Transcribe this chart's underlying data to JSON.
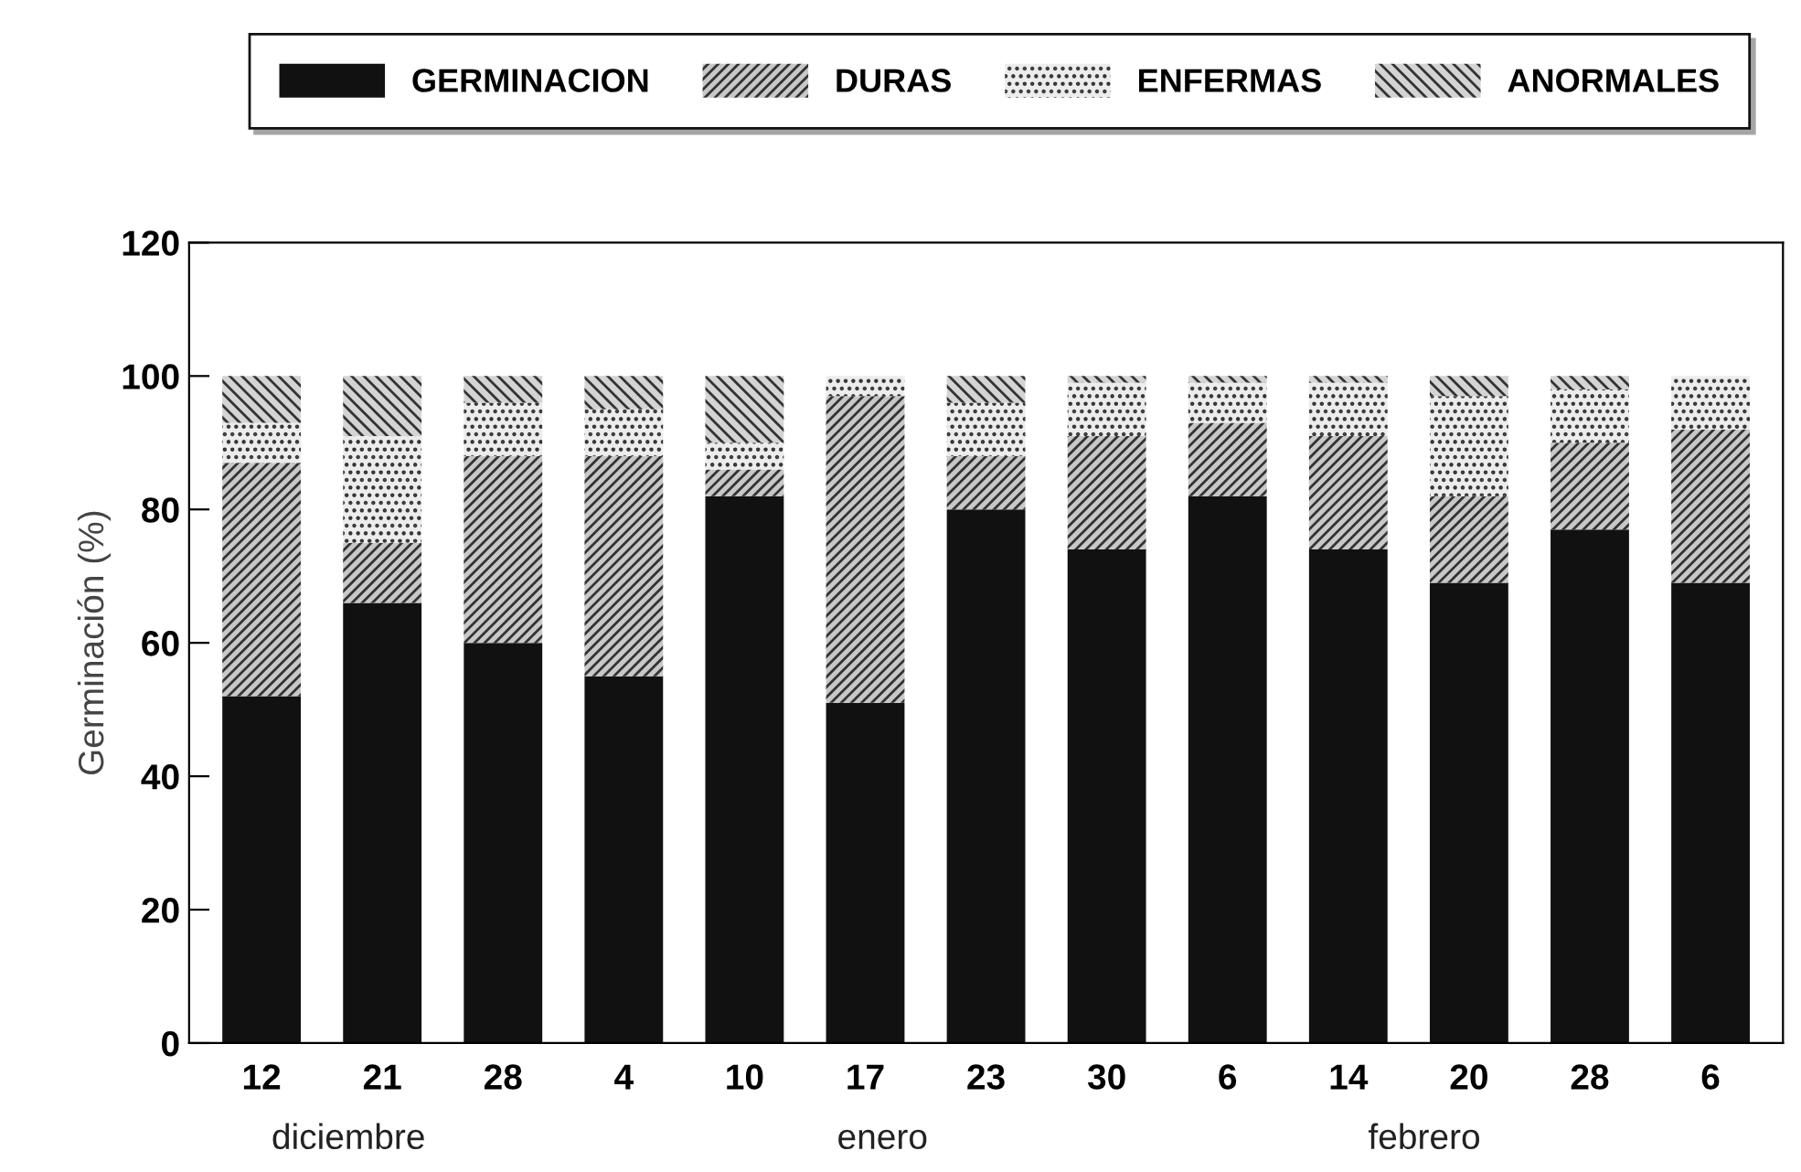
{
  "chart_data": {
    "type": "bar",
    "stacked": true,
    "categories": [
      "12",
      "21",
      "28",
      "4",
      "10",
      "17",
      "23",
      "30",
      "6",
      "14",
      "20",
      "28",
      "6"
    ],
    "series": [
      {
        "name": "GERMINACION",
        "color": "#111111",
        "values": [
          52,
          66,
          60,
          55,
          82,
          51,
          80,
          74,
          82,
          74,
          69,
          77,
          69
        ]
      },
      {
        "name": "DURAS",
        "color": "#c8c8c8",
        "values": [
          35,
          9,
          28,
          33,
          4,
          46,
          8,
          17,
          11,
          17,
          13,
          13,
          23
        ]
      },
      {
        "name": "ENFERMAS",
        "color": "#ececec",
        "values": [
          6,
          16,
          8,
          7,
          4,
          3,
          8,
          8,
          6,
          8,
          15,
          8,
          8
        ]
      },
      {
        "name": "ANORMALES",
        "color": "#d4d4d4",
        "values": [
          7,
          9,
          4,
          5,
          10,
          0,
          4,
          1,
          1,
          1,
          3,
          2,
          0
        ]
      }
    ],
    "ylabel": "Germinación (%)",
    "ylim": [
      0,
      120
    ],
    "yticks": [
      0,
      20,
      40,
      60,
      80,
      100,
      120
    ],
    "annotations": [
      "diciembre",
      "enero",
      "febrero"
    ],
    "legend": "top",
    "grid": false
  }
}
